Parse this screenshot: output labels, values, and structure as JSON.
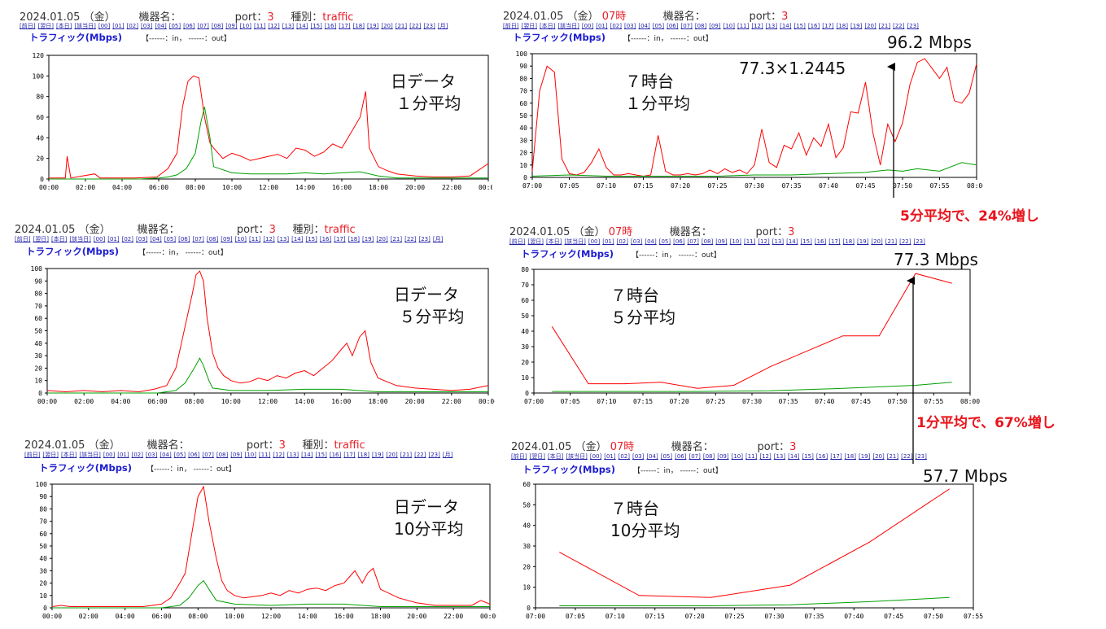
{
  "colors": {
    "in": "#ff0000",
    "out": "#00a000",
    "header_red": "#e8202a",
    "annotation_red": "#e8141c",
    "title_blue": "#1c1cd0"
  },
  "nav_day": [
    "[前日]",
    "[翌日]",
    "[本日]",
    "[該当日]",
    "[00]",
    "[01]",
    "[02]",
    "[03]",
    "[04]",
    "[05]",
    "[06]",
    "[07]",
    "[08]",
    "[09]",
    "[10]",
    "[11]",
    "[12]",
    "[13]",
    "[14]",
    "[15]",
    "[16]",
    "[17]",
    "[18]",
    "[19]",
    "[20]",
    "[21]",
    "[22]",
    "[23]",
    "[月]"
  ],
  "nav_hour": [
    "[前日]",
    "[翌日]",
    "[本日]",
    "[該当日]",
    "[00]",
    "[01]",
    "[02]",
    "[03]",
    "[04]",
    "[05]",
    "[06]",
    "[07]",
    "[08]",
    "[09]",
    "[10]",
    "[11]",
    "[12]",
    "[13]",
    "[14]",
    "[15]",
    "[16]",
    "[17]",
    "[18]",
    "[19]",
    "[20]",
    "[21]",
    "[22]",
    "[23]"
  ],
  "panels": [
    {
      "date": "2024.01.05",
      "dow": "（金）",
      "hour": "",
      "device_label": "機器名：",
      "port_label": "port：",
      "port": "3",
      "kind_label": "種別：",
      "kind": "traffic",
      "title": "トラフィック(Mbps)",
      "legend": "【------：in，  ------：out】"
    },
    {
      "date": "2024.01.05",
      "dow": "（金）",
      "hour": "07時",
      "device_label": "機器名：",
      "port_label": "port：",
      "port": "3",
      "kind_label": "",
      "kind": "",
      "title": "トラフィック(Mbps)",
      "legend": "【------：in，  ------：out】"
    },
    {
      "date": "2024.01.05",
      "dow": "（金）",
      "hour": "",
      "device_label": "機器名：",
      "port_label": "port：",
      "port": "3",
      "kind_label": "種別：",
      "kind": "traffic",
      "title": "トラフィック(Mbps)",
      "legend": "【------：in，  ------：out】"
    },
    {
      "date": "2024.01.05",
      "dow": "（金）",
      "hour": "07時",
      "device_label": "機器名：",
      "port_label": "port：",
      "port": "3",
      "kind_label": "",
      "kind": "",
      "title": "トラフィック(Mbps)",
      "legend": "【------：in，  ------：out】"
    },
    {
      "date": "2024.01.05",
      "dow": "（金）",
      "hour": "",
      "device_label": "機器名：",
      "port_label": "port：",
      "port": "3",
      "kind_label": "種別：",
      "kind": "traffic",
      "title": "トラフィック(Mbps)",
      "legend": "【------：in，  ------：out】"
    },
    {
      "date": "2024.01.05",
      "dow": "（金）",
      "hour": "07時",
      "device_label": "機器名：",
      "port_label": "port：",
      "port": "3",
      "kind_label": "",
      "kind": "",
      "title": "トラフィック(Mbps)",
      "legend": "【------：in，  ------：out】"
    }
  ],
  "annotations": {
    "a1_line1": "日データ",
    "a1_line2": " １分平均",
    "a2_line1": "７時台",
    "a2_line2": "１分平均",
    "a3_line1": "日データ",
    "a3_line2": " ５分平均",
    "a4_line1": "７時台",
    "a4_line2": "５分平均",
    "a5_line1": "日データ",
    "a5_line2": "10分平均",
    "a6_line1": "７時台",
    "a6_line2": "10分平均",
    "peak1": "96.2 Mbps",
    "formula": "77.3×1.2445",
    "peak2": "77.3 Mbps",
    "peak3": "57.7 Mbps",
    "increase5": "5分平均で、24%増し",
    "increase1": "1分平均で、67%増し"
  },
  "chart_data": [
    {
      "type": "line",
      "id": "day-1min",
      "y_ticks": [
        0,
        20,
        40,
        60,
        80,
        100,
        120
      ],
      "ylim": [
        0,
        120
      ],
      "x_ticks": [
        "00:00",
        "02:00",
        "04:00",
        "06:00",
        "08:00",
        "10:00",
        "12:00",
        "14:00",
        "16:00",
        "18:00",
        "20:00",
        "22:00",
        "00:00"
      ],
      "series": [
        {
          "key": "in",
          "x": [
            0,
            0.9,
            1.0,
            1.2,
            2.5,
            2.8,
            3.4,
            4.7,
            5.9,
            6.5,
            7.0,
            7.3,
            7.6,
            7.9,
            8.2,
            8.5,
            8.8,
            9.0,
            9.5,
            10,
            10.5,
            11,
            11.5,
            12,
            12.5,
            13,
            13.5,
            14,
            14.5,
            15,
            15.5,
            16,
            16.5,
            17,
            17.3,
            17.5,
            18,
            18.5,
            19,
            20,
            21,
            22,
            23,
            24
          ],
          "y": [
            1,
            1,
            22,
            1,
            5,
            1,
            1,
            1,
            2,
            10,
            25,
            70,
            95,
            100,
            98,
            60,
            35,
            30,
            20,
            25,
            22,
            18,
            20,
            22,
            24,
            20,
            30,
            28,
            22,
            26,
            34,
            30,
            45,
            60,
            85,
            30,
            12,
            8,
            5,
            3,
            2,
            2,
            3,
            15
          ]
        },
        {
          "key": "out",
          "x": [
            0,
            5,
            6,
            6.5,
            7,
            7.5,
            8,
            8.3,
            8.5,
            8.8,
            9,
            10,
            11,
            12,
            13,
            14,
            15,
            16,
            17,
            18,
            19,
            24
          ],
          "y": [
            0,
            0,
            1,
            2,
            4,
            10,
            25,
            55,
            70,
            40,
            12,
            6,
            5,
            5,
            5,
            6,
            5,
            6,
            7,
            3,
            1,
            1
          ]
        }
      ]
    },
    {
      "type": "line",
      "id": "hour-1min",
      "y_ticks": [
        0,
        10,
        20,
        30,
        40,
        50,
        60,
        70,
        80,
        90,
        100
      ],
      "ylim": [
        0,
        100
      ],
      "x_ticks": [
        "07:00",
        "07:05",
        "07:10",
        "07:15",
        "07:20",
        "07:25",
        "07:30",
        "07:35",
        "07:40",
        "07:45",
        "07:50",
        "07:55",
        "08:00"
      ],
      "series": [
        {
          "key": "in",
          "x": [
            0,
            1,
            2,
            3,
            4,
            5,
            6,
            7,
            8,
            9,
            10,
            11,
            12,
            13,
            14,
            15,
            16,
            17,
            18,
            19,
            20,
            21,
            22,
            23,
            24,
            25,
            26,
            27,
            28,
            29,
            30,
            31,
            32,
            33,
            34,
            35,
            36,
            37,
            38,
            39,
            40,
            41,
            42,
            43,
            44,
            45,
            46,
            47,
            48,
            49,
            50,
            51,
            52,
            53,
            54,
            55,
            56,
            57,
            58,
            59,
            60
          ],
          "y": [
            5,
            70,
            90,
            85,
            15,
            3,
            2,
            4,
            12,
            23,
            8,
            2,
            2,
            3,
            2,
            1,
            2,
            34,
            5,
            2,
            2,
            3,
            2,
            3,
            6,
            3,
            7,
            4,
            6,
            3,
            10,
            39,
            12,
            8,
            26,
            23,
            36,
            18,
            32,
            25,
            43,
            16,
            24,
            53,
            52,
            77,
            36,
            10,
            43,
            29,
            44,
            75,
            93,
            96,
            88,
            80,
            89,
            62,
            60,
            68,
            92
          ]
        },
        {
          "key": "out",
          "x": [
            0,
            5,
            10,
            15,
            20,
            25,
            30,
            35,
            40,
            45,
            48,
            50,
            52,
            55,
            58,
            60
          ],
          "y": [
            1,
            2,
            1,
            1,
            1,
            1,
            2,
            2,
            3,
            4,
            6,
            5,
            7,
            5,
            12,
            10
          ]
        }
      ]
    },
    {
      "type": "line",
      "id": "day-5min",
      "y_ticks": [
        0,
        10,
        20,
        30,
        40,
        50,
        60,
        70,
        80,
        90,
        100
      ],
      "ylim": [
        0,
        100
      ],
      "x_ticks": [
        "00:00",
        "02:00",
        "04:00",
        "06:00",
        "08:00",
        "10:00",
        "12:00",
        "14:00",
        "16:00",
        "18:00",
        "20:00",
        "22:00",
        "00:00"
      ],
      "series": [
        {
          "key": "in",
          "x": [
            0,
            1,
            2,
            3,
            4,
            5,
            5.8,
            6.5,
            7,
            7.3,
            7.6,
            7.9,
            8.1,
            8.3,
            8.5,
            8.7,
            9,
            9.3,
            9.6,
            10,
            10.5,
            11,
            11.5,
            12,
            12.5,
            13,
            13.5,
            14,
            14.5,
            15,
            15.5,
            16,
            16.3,
            16.6,
            17,
            17.3,
            17.6,
            18,
            19,
            20,
            21,
            22,
            23,
            24
          ],
          "y": [
            2,
            1,
            2,
            1,
            2,
            1,
            3,
            6,
            20,
            40,
            60,
            80,
            95,
            98,
            90,
            60,
            32,
            20,
            14,
            10,
            8,
            9,
            12,
            10,
            14,
            12,
            16,
            18,
            14,
            20,
            26,
            35,
            40,
            30,
            45,
            50,
            25,
            12,
            6,
            4,
            3,
            2,
            3,
            6
          ]
        },
        {
          "key": "out",
          "x": [
            0,
            6,
            7,
            7.5,
            8,
            8.3,
            8.5,
            8.8,
            9,
            10,
            12,
            14,
            16,
            18,
            24
          ],
          "y": [
            0,
            0,
            2,
            8,
            20,
            28,
            22,
            10,
            4,
            2,
            2,
            3,
            3,
            1,
            1
          ]
        }
      ]
    },
    {
      "type": "line",
      "id": "hour-5min",
      "y_ticks": [
        0,
        10,
        20,
        30,
        40,
        50,
        60,
        70,
        80
      ],
      "ylim": [
        0,
        80
      ],
      "x_ticks": [
        "07:00",
        "07:05",
        "07:10",
        "07:15",
        "07:20",
        "07:25",
        "07:30",
        "07:35",
        "07:40",
        "07:45",
        "07:50",
        "07:55",
        "08:00"
      ],
      "series": [
        {
          "key": "in",
          "x": [
            2.5,
            7.5,
            12.5,
            17.5,
            22.5,
            27.5,
            32.5,
            37.5,
            42.5,
            47.5,
            52.5,
            57.5
          ],
          "y": [
            43,
            6,
            6,
            7,
            3,
            5,
            17,
            27,
            37,
            37,
            77.3,
            71
          ]
        },
        {
          "key": "out",
          "x": [
            2.5,
            12.5,
            22.5,
            32.5,
            42.5,
            52.5,
            57.5
          ],
          "y": [
            1,
            1,
            1,
            1.5,
            3,
            5,
            7
          ]
        }
      ]
    },
    {
      "type": "line",
      "id": "day-10min",
      "y_ticks": [
        0,
        10,
        20,
        30,
        40,
        50,
        60,
        70,
        80,
        90,
        100
      ],
      "ylim": [
        0,
        100
      ],
      "x_ticks": [
        "00:00",
        "02:00",
        "04:00",
        "06:00",
        "08:00",
        "10:00",
        "12:00",
        "14:00",
        "16:00",
        "18:00",
        "20:00",
        "22:00",
        "00:00"
      ],
      "series": [
        {
          "key": "in",
          "x": [
            0,
            0.5,
            1,
            2,
            3,
            4,
            5,
            6,
            6.5,
            7,
            7.3,
            7.6,
            8,
            8.3,
            8.6,
            9,
            9.3,
            9.6,
            10,
            10.5,
            11,
            11.5,
            12,
            12.5,
            13,
            13.5,
            14,
            14.5,
            15,
            15.5,
            16,
            16.3,
            16.6,
            17,
            17.3,
            17.6,
            18,
            19,
            20,
            21,
            22,
            23,
            23.5,
            24
          ],
          "y": [
            1,
            2,
            1,
            1,
            1,
            1,
            1,
            3,
            8,
            20,
            28,
            55,
            90,
            98,
            70,
            40,
            22,
            14,
            10,
            8,
            9,
            10,
            12,
            10,
            14,
            12,
            15,
            16,
            14,
            18,
            20,
            25,
            30,
            20,
            28,
            32,
            15,
            8,
            4,
            2,
            2,
            2,
            6,
            3
          ]
        },
        {
          "key": "out",
          "x": [
            0,
            6,
            7,
            7.5,
            8,
            8.3,
            8.6,
            9,
            10,
            12,
            14,
            16,
            18,
            24
          ],
          "y": [
            0,
            0,
            2,
            8,
            18,
            22,
            15,
            6,
            3,
            2,
            3,
            3,
            1,
            1
          ]
        }
      ]
    },
    {
      "type": "line",
      "id": "hour-10min",
      "y_ticks": [
        0,
        10,
        20,
        30,
        40,
        50,
        60
      ],
      "ylim": [
        0,
        60
      ],
      "x_ticks": [
        "07:00",
        "07:05",
        "07:10",
        "07:15",
        "07:20",
        "07:25",
        "07:30",
        "07:35",
        "07:40",
        "07:45",
        "07:50",
        "07:55"
      ],
      "series": [
        {
          "key": "in",
          "x": [
            3,
            13,
            22,
            32,
            42,
            52
          ],
          "y": [
            27,
            6,
            5,
            11,
            32,
            57.7
          ]
        },
        {
          "key": "out",
          "x": [
            3,
            22,
            32,
            42,
            52
          ],
          "y": [
            1,
            1,
            1.5,
            3,
            5
          ]
        }
      ]
    }
  ]
}
